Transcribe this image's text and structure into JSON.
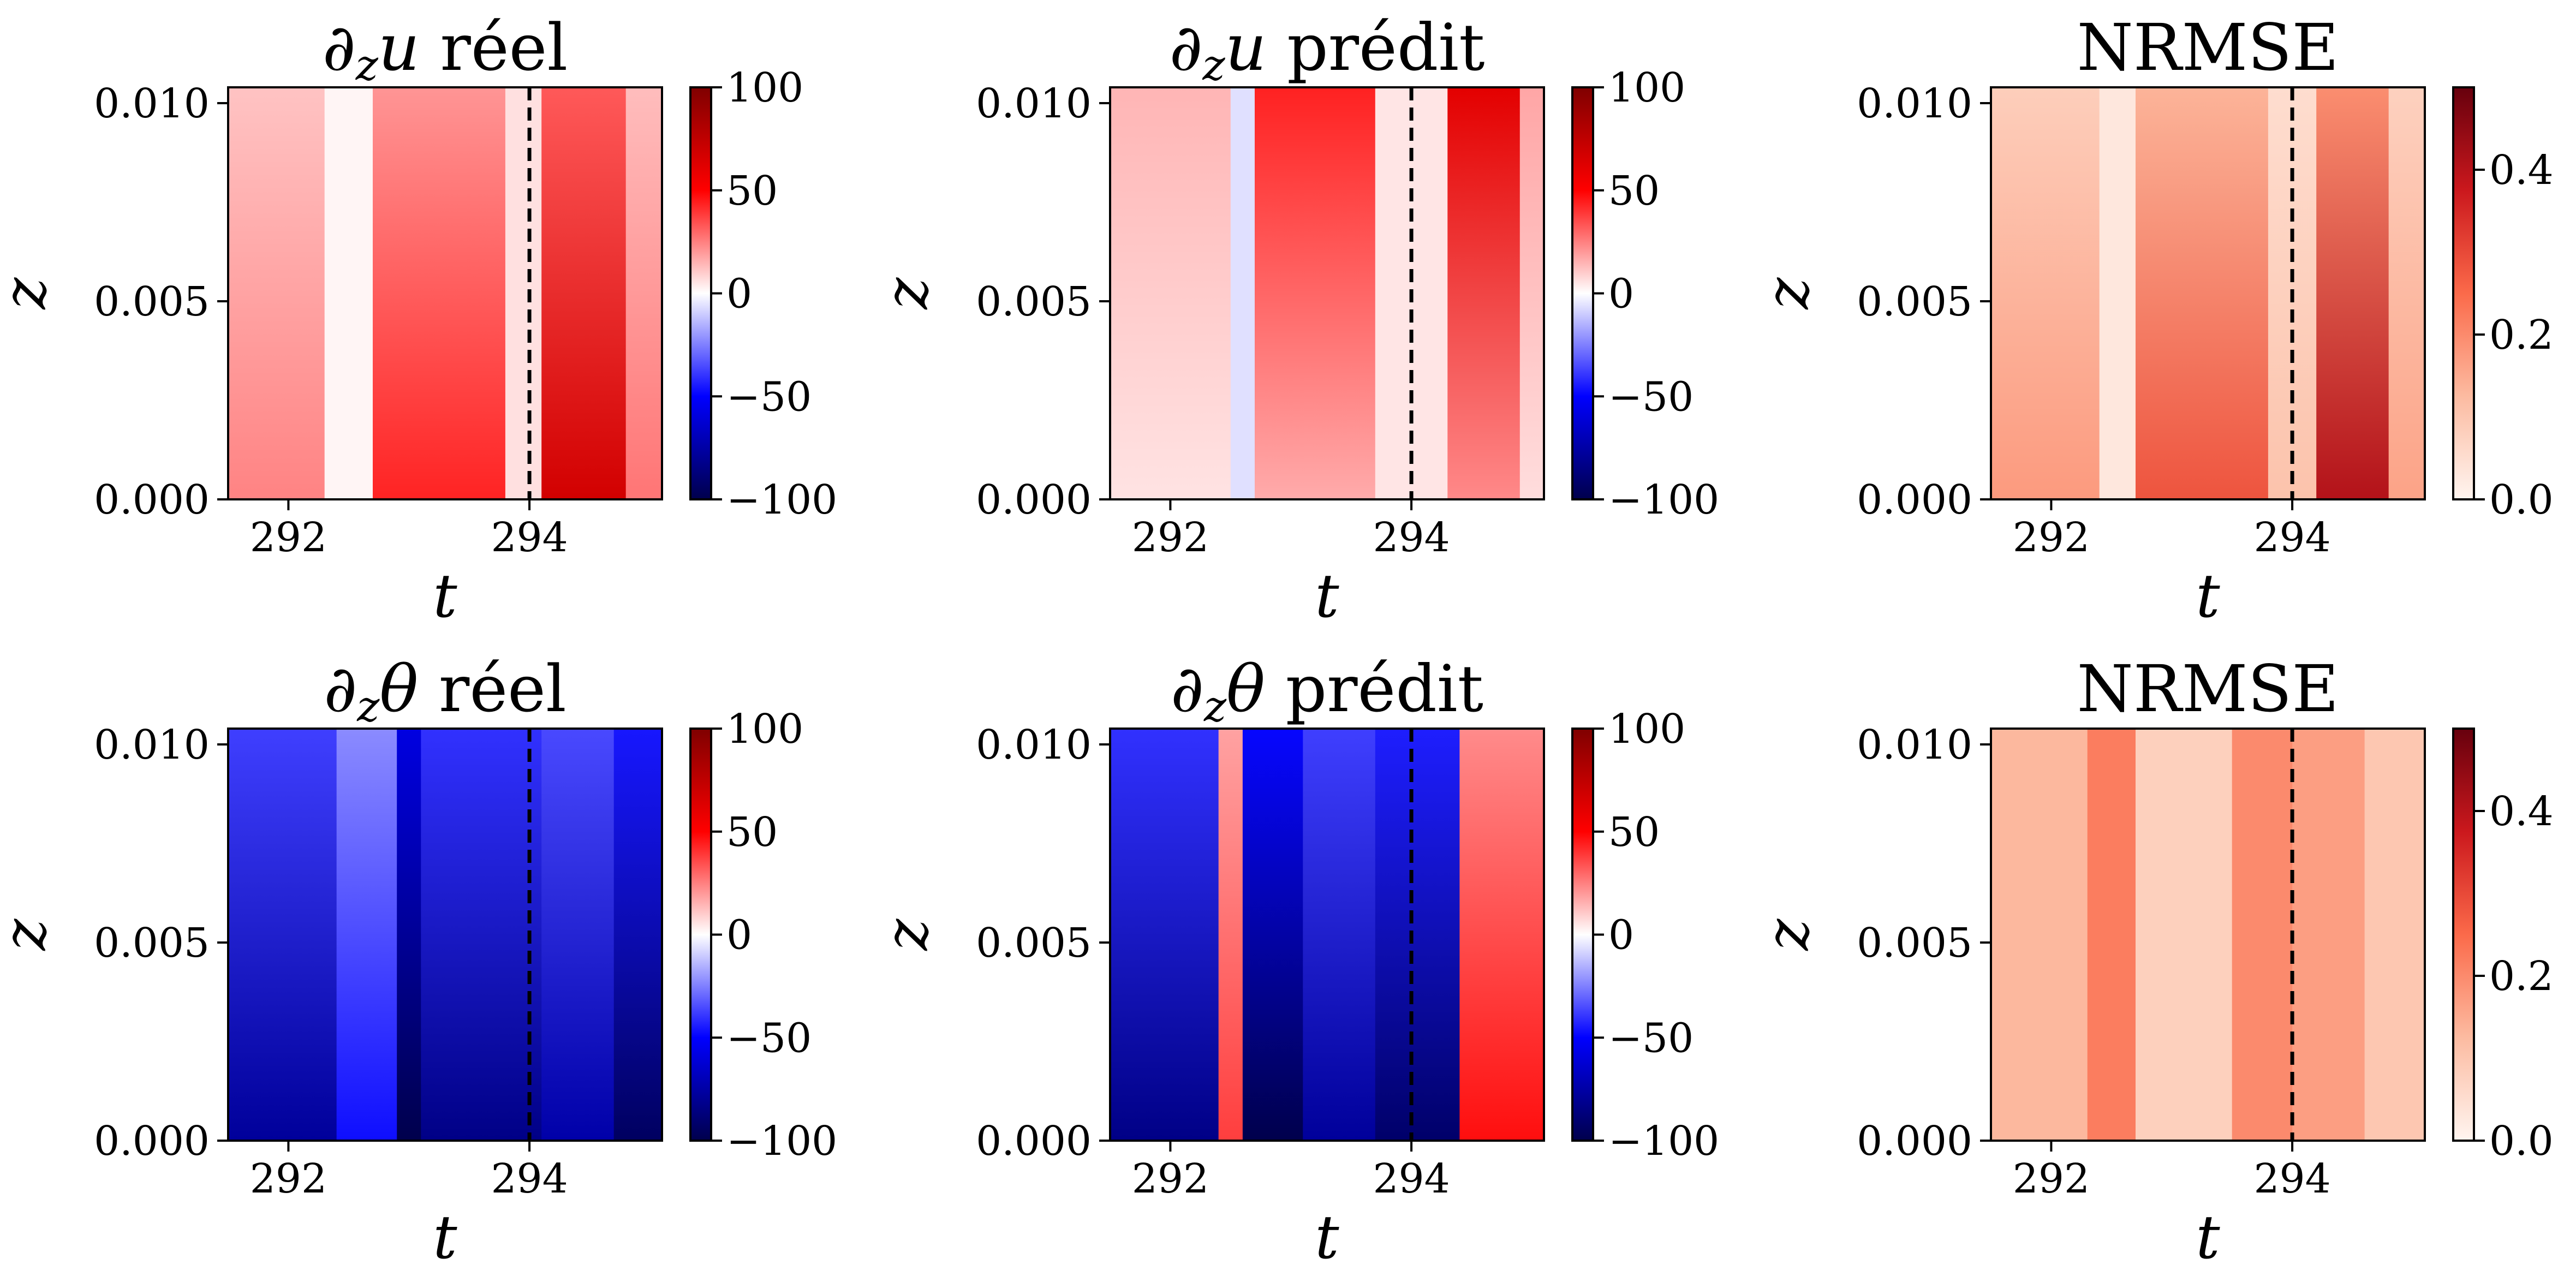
{
  "figure": {
    "panels": [
      {
        "id": "dzu-real",
        "title_parts": [
          "∂",
          "z",
          "u réel"
        ],
        "title_style": "dz",
        "cmap": "seismic"
      },
      {
        "id": "dzu-pred",
        "title_parts": [
          "∂",
          "z",
          "u prédit"
        ],
        "title_style": "dz",
        "cmap": "seismic"
      },
      {
        "id": "dzu-nrmse",
        "title_parts": [
          "NRMSE"
        ],
        "title_style": "plain",
        "cmap": "reds"
      },
      {
        "id": "dztheta-real",
        "title_parts": [
          "∂",
          "z",
          "θ réel"
        ],
        "title_style": "dz",
        "cmap": "seismic"
      },
      {
        "id": "dztheta-pred",
        "title_parts": [
          "∂",
          "z",
          "θ prédit"
        ],
        "title_style": "dz",
        "cmap": "seismic"
      },
      {
        "id": "dztheta-nrmse",
        "title_parts": [
          "NRMSE"
        ],
        "title_style": "plain",
        "cmap": "reds"
      }
    ],
    "colors": {
      "seismic": [
        "#00004c",
        "#0000ff",
        "#ffffff",
        "#ff0000",
        "#7f0000"
      ],
      "reds": [
        "#fff5f0",
        "#fcbba1",
        "#fb6a4a",
        "#cb181d",
        "#67000d"
      ],
      "marker_line": "#000000"
    }
  },
  "chart_data": [
    {
      "type": "heatmap",
      "title": "∂zu réel",
      "xlabel": "t",
      "ylabel": "z",
      "xlim": [
        291.5,
        295.1
      ],
      "ylim": [
        0.0,
        0.0104
      ],
      "xticks": [
        "292",
        "294"
      ],
      "yticks": [
        "0.000",
        "0.005",
        "0.010"
      ],
      "colorbar": {
        "min": -100,
        "max": 100,
        "ticks": [
          "100",
          "50",
          "0",
          "−50",
          "−100"
        ],
        "colormap": "seismic"
      },
      "vline_t": 294.0,
      "bands": [
        {
          "t_start": 291.5,
          "t_end": 292.3,
          "value": 18,
          "trend": "up"
        },
        {
          "t_start": 292.3,
          "t_end": 292.7,
          "value": 2,
          "trend": "flat"
        },
        {
          "t_start": 292.7,
          "t_end": 293.8,
          "value": 32,
          "trend": "up"
        },
        {
          "t_start": 293.8,
          "t_end": 294.1,
          "value": 6,
          "trend": "flat"
        },
        {
          "t_start": 294.1,
          "t_end": 294.8,
          "value": 50,
          "trend": "up"
        },
        {
          "t_start": 294.8,
          "t_end": 295.1,
          "value": 20,
          "trend": "up"
        }
      ]
    },
    {
      "type": "heatmap",
      "title": "∂zu prédit",
      "xlabel": "t",
      "ylabel": "z",
      "xlim": [
        291.5,
        295.1
      ],
      "ylim": [
        0.0,
        0.0104
      ],
      "xticks": [
        "292",
        "294"
      ],
      "yticks": [
        "0.000",
        "0.005",
        "0.010"
      ],
      "colorbar": {
        "min": -100,
        "max": 100,
        "ticks": [
          "100",
          "50",
          "0",
          "−50",
          "−100"
        ],
        "colormap": "seismic"
      },
      "vline_t": 294.0,
      "bands": [
        {
          "t_start": 291.5,
          "t_end": 292.5,
          "value": 10,
          "trend": "down"
        },
        {
          "t_start": 292.5,
          "t_end": 292.7,
          "value": -6,
          "trend": "flat"
        },
        {
          "t_start": 292.7,
          "t_end": 293.7,
          "value": 30,
          "trend": "down"
        },
        {
          "t_start": 293.7,
          "t_end": 294.3,
          "value": 5,
          "trend": "flat"
        },
        {
          "t_start": 294.3,
          "t_end": 294.9,
          "value": 42,
          "trend": "down"
        },
        {
          "t_start": 294.9,
          "t_end": 295.1,
          "value": 12,
          "trend": "down"
        }
      ]
    },
    {
      "type": "heatmap",
      "title": "NRMSE",
      "xlabel": "t",
      "ylabel": "z",
      "xlim": [
        291.5,
        295.1
      ],
      "ylim": [
        0.0,
        0.0104
      ],
      "xticks": [
        "292",
        "294"
      ],
      "yticks": [
        "0.000",
        "0.005",
        "0.010"
      ],
      "colorbar": {
        "min": 0.0,
        "max": 0.5,
        "ticks": [
          "0.4",
          "0.2",
          "0.0"
        ],
        "colormap": "reds"
      },
      "vline_t": 294.0,
      "bands": [
        {
          "t_start": 291.5,
          "t_end": 292.4,
          "value": 0.13,
          "trend": "up"
        },
        {
          "t_start": 292.4,
          "t_end": 292.7,
          "value": 0.03,
          "trend": "flat"
        },
        {
          "t_start": 292.7,
          "t_end": 293.8,
          "value": 0.21,
          "trend": "up"
        },
        {
          "t_start": 293.8,
          "t_end": 294.2,
          "value": 0.08,
          "trend": "up"
        },
        {
          "t_start": 294.2,
          "t_end": 294.8,
          "value": 0.3,
          "trend": "up"
        },
        {
          "t_start": 294.8,
          "t_end": 295.1,
          "value": 0.12,
          "trend": "up"
        }
      ]
    },
    {
      "type": "heatmap",
      "title": "∂zθ réel",
      "xlabel": "t",
      "ylabel": "z",
      "xlim": [
        291.5,
        295.1
      ],
      "ylim": [
        0.0,
        0.0104
      ],
      "xticks": [
        "292",
        "294"
      ],
      "yticks": [
        "0.000",
        "0.005",
        "0.010"
      ],
      "colorbar": {
        "min": -100,
        "max": 100,
        "ticks": [
          "100",
          "50",
          "0",
          "−50",
          "−100"
        ],
        "colormap": "seismic"
      },
      "vline_t": 294.0,
      "bands": [
        {
          "t_start": 291.5,
          "t_end": 292.4,
          "value": -58,
          "trend": "up"
        },
        {
          "t_start": 292.4,
          "t_end": 292.9,
          "value": -35,
          "trend": "up"
        },
        {
          "t_start": 292.9,
          "t_end": 293.1,
          "value": -90,
          "trend": "up"
        },
        {
          "t_start": 293.1,
          "t_end": 294.1,
          "value": -62,
          "trend": "up"
        },
        {
          "t_start": 294.1,
          "t_end": 294.7,
          "value": -55,
          "trend": "up"
        },
        {
          "t_start": 294.7,
          "t_end": 295.1,
          "value": -70,
          "trend": "up"
        }
      ]
    },
    {
      "type": "heatmap",
      "title": "∂zθ prédit",
      "xlabel": "t",
      "ylabel": "z",
      "xlim": [
        291.5,
        295.1
      ],
      "ylim": [
        0.0,
        0.0104
      ],
      "xticks": [
        "292",
        "294"
      ],
      "yticks": [
        "0.000",
        "0.005",
        "0.010"
      ],
      "colorbar": {
        "min": -100,
        "max": 100,
        "ticks": [
          "100",
          "50",
          "0",
          "−50",
          "−100"
        ],
        "colormap": "seismic"
      },
      "vline_t": 294.0,
      "bands": [
        {
          "t_start": 291.5,
          "t_end": 292.4,
          "value": -62,
          "trend": "up"
        },
        {
          "t_start": 292.4,
          "t_end": 292.6,
          "value": 28,
          "trend": "up"
        },
        {
          "t_start": 292.6,
          "t_end": 293.1,
          "value": -75,
          "trend": "up"
        },
        {
          "t_start": 293.1,
          "t_end": 293.7,
          "value": -58,
          "trend": "up"
        },
        {
          "t_start": 293.7,
          "t_end": 294.4,
          "value": -68,
          "trend": "up"
        },
        {
          "t_start": 294.4,
          "t_end": 295.1,
          "value": 35,
          "trend": "up"
        }
      ]
    },
    {
      "type": "heatmap",
      "title": "NRMSE",
      "xlabel": "t",
      "ylabel": "z",
      "xlim": [
        291.5,
        295.1
      ],
      "ylim": [
        0.0,
        0.0104
      ],
      "xticks": [
        "292",
        "294"
      ],
      "yticks": [
        "0.000",
        "0.005",
        "0.010"
      ],
      "colorbar": {
        "min": 0.0,
        "max": 0.5,
        "ticks": [
          "0.4",
          "0.2",
          "0.0"
        ],
        "colormap": "reds"
      },
      "vline_t": 294.0,
      "bands": [
        {
          "t_start": 291.5,
          "t_end": 292.3,
          "value": 0.13,
          "trend": "flat"
        },
        {
          "t_start": 292.3,
          "t_end": 292.7,
          "value": 0.22,
          "trend": "flat"
        },
        {
          "t_start": 292.7,
          "t_end": 293.5,
          "value": 0.08,
          "trend": "flat"
        },
        {
          "t_start": 293.5,
          "t_end": 294.0,
          "value": 0.2,
          "trend": "flat"
        },
        {
          "t_start": 294.0,
          "t_end": 294.6,
          "value": 0.17,
          "trend": "flat"
        },
        {
          "t_start": 294.6,
          "t_end": 295.1,
          "value": 0.1,
          "trend": "flat"
        }
      ]
    }
  ]
}
